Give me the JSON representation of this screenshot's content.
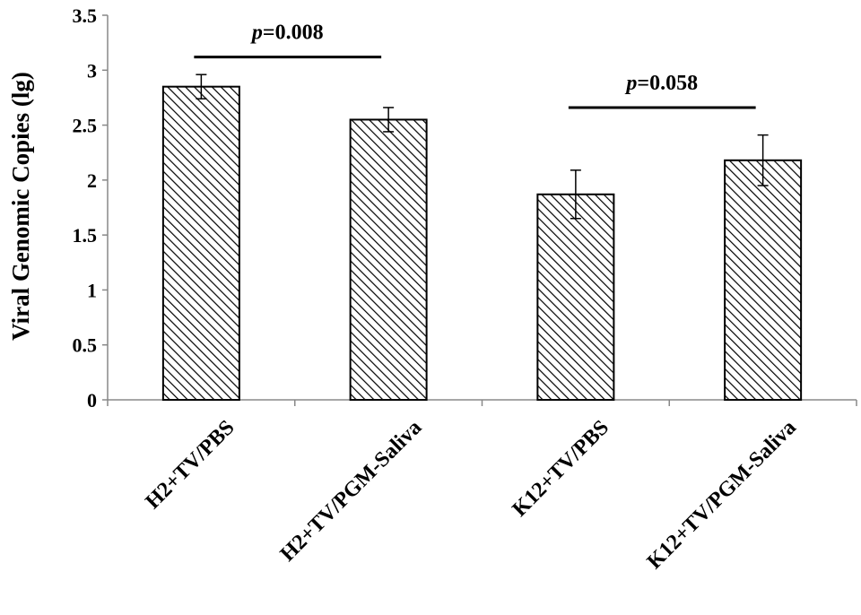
{
  "chart_data": {
    "type": "bar",
    "title": "",
    "xlabel": "",
    "ylabel": "Viral Genomic Copies (lg)",
    "ylim": [
      0,
      3.5
    ],
    "yticks": [
      "0",
      "0.5",
      "1",
      "1.5",
      "2",
      "2.5",
      "3",
      "3.5"
    ],
    "categories": [
      "H2+TV/PBS",
      "H2+TV/PGM-Saliva",
      "K12+TV/PBS",
      "K12+TV/PGM-Saliva"
    ],
    "values": [
      2.85,
      2.55,
      1.87,
      2.18
    ],
    "error": [
      0.11,
      0.11,
      0.22,
      0.23
    ],
    "bar_pattern": "diagonal-hatch",
    "grid": false,
    "legend": "none",
    "annotations": [
      {
        "label_prefix": "p",
        "label_value": "=0.008",
        "between": [
          0,
          1
        ],
        "y": 3.12
      },
      {
        "label_prefix": "p",
        "label_value": "=0.058",
        "between": [
          2,
          3
        ],
        "y": 2.66
      }
    ]
  },
  "colors": {
    "bar_stroke": "#000000",
    "hatch": "#000000",
    "background": "#ffffff"
  }
}
